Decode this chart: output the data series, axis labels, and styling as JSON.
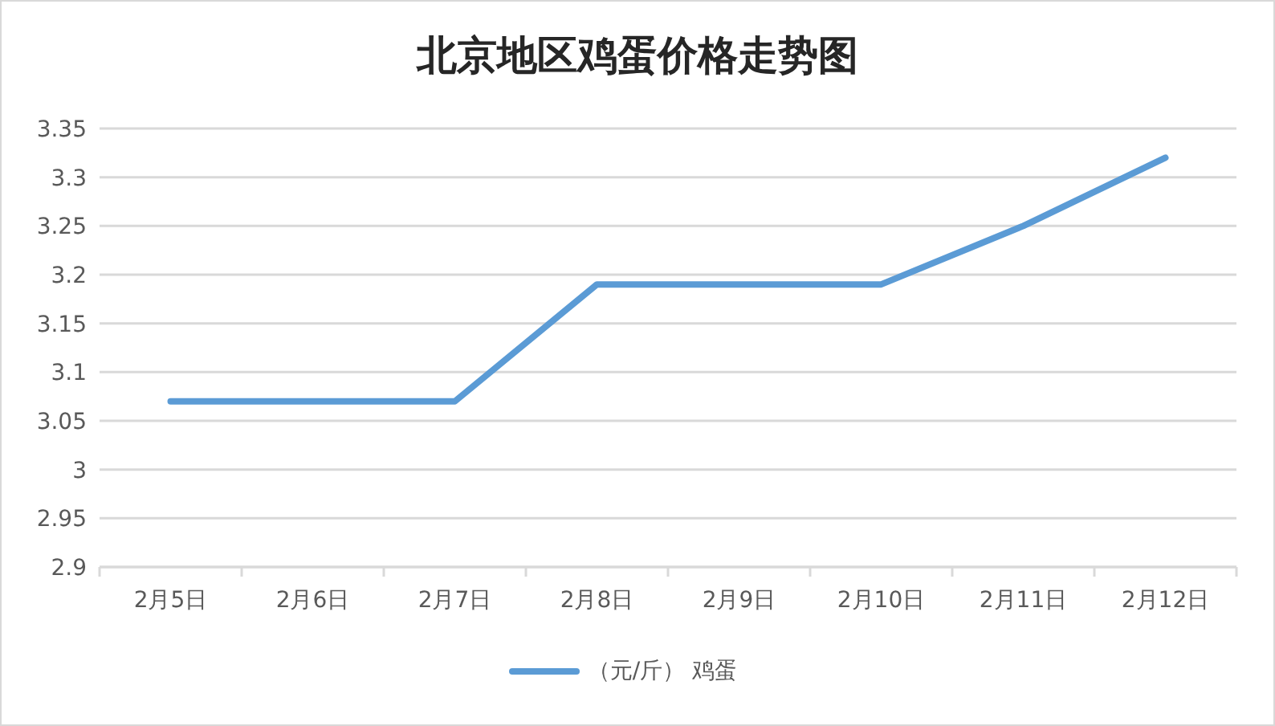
{
  "chart_data": {
    "type": "line",
    "title": "北京地区鸡蛋价格走势图",
    "categories": [
      "2月5日",
      "2月6日",
      "2月7日",
      "2月8日",
      "2月9日",
      "2月10日",
      "2月11日",
      "2月12日"
    ],
    "series": [
      {
        "name": "（元/斤） 鸡蛋",
        "color": "#5b9bd5",
        "values": [
          3.07,
          3.07,
          3.07,
          3.19,
          3.19,
          3.19,
          3.25,
          3.32
        ]
      }
    ],
    "ylim": [
      2.9,
      3.35
    ],
    "yticks": [
      2.9,
      2.95,
      3,
      3.05,
      3.1,
      3.15,
      3.2,
      3.25,
      3.3,
      3.35
    ],
    "grid": "y",
    "legend": "bottom",
    "marker": "none",
    "line_style": "solid"
  }
}
